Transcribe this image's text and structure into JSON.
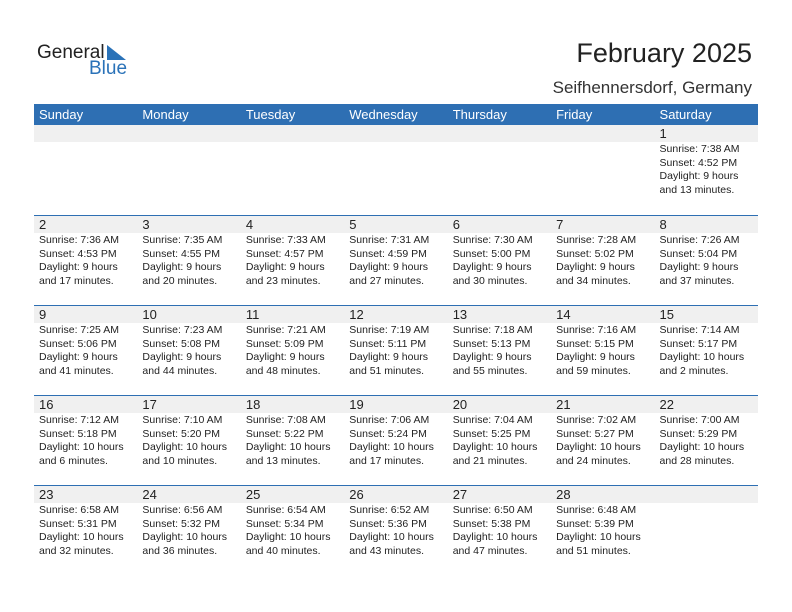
{
  "logo": {
    "text1": "General",
    "text2": "Blue"
  },
  "title": "February 2025",
  "location": "Seifhennersdorf, Germany",
  "colors": {
    "header": "#2e6fb3",
    "band": "#f0f0f0"
  },
  "weekdays": [
    "Sunday",
    "Monday",
    "Tuesday",
    "Wednesday",
    "Thursday",
    "Friday",
    "Saturday"
  ],
  "weeks": [
    {
      "days": [
        null,
        null,
        null,
        null,
        null,
        null,
        {
          "date": "1",
          "sunrise": "Sunrise: 7:38 AM",
          "sunset": "Sunset: 4:52 PM",
          "daylight1": "Daylight: 9 hours",
          "daylight2": "and 13 minutes."
        }
      ]
    },
    {
      "days": [
        {
          "date": "2",
          "sunrise": "Sunrise: 7:36 AM",
          "sunset": "Sunset: 4:53 PM",
          "daylight1": "Daylight: 9 hours",
          "daylight2": "and 17 minutes."
        },
        {
          "date": "3",
          "sunrise": "Sunrise: 7:35 AM",
          "sunset": "Sunset: 4:55 PM",
          "daylight1": "Daylight: 9 hours",
          "daylight2": "and 20 minutes."
        },
        {
          "date": "4",
          "sunrise": "Sunrise: 7:33 AM",
          "sunset": "Sunset: 4:57 PM",
          "daylight1": "Daylight: 9 hours",
          "daylight2": "and 23 minutes."
        },
        {
          "date": "5",
          "sunrise": "Sunrise: 7:31 AM",
          "sunset": "Sunset: 4:59 PM",
          "daylight1": "Daylight: 9 hours",
          "daylight2": "and 27 minutes."
        },
        {
          "date": "6",
          "sunrise": "Sunrise: 7:30 AM",
          "sunset": "Sunset: 5:00 PM",
          "daylight1": "Daylight: 9 hours",
          "daylight2": "and 30 minutes."
        },
        {
          "date": "7",
          "sunrise": "Sunrise: 7:28 AM",
          "sunset": "Sunset: 5:02 PM",
          "daylight1": "Daylight: 9 hours",
          "daylight2": "and 34 minutes."
        },
        {
          "date": "8",
          "sunrise": "Sunrise: 7:26 AM",
          "sunset": "Sunset: 5:04 PM",
          "daylight1": "Daylight: 9 hours",
          "daylight2": "and 37 minutes."
        }
      ]
    },
    {
      "days": [
        {
          "date": "9",
          "sunrise": "Sunrise: 7:25 AM",
          "sunset": "Sunset: 5:06 PM",
          "daylight1": "Daylight: 9 hours",
          "daylight2": "and 41 minutes."
        },
        {
          "date": "10",
          "sunrise": "Sunrise: 7:23 AM",
          "sunset": "Sunset: 5:08 PM",
          "daylight1": "Daylight: 9 hours",
          "daylight2": "and 44 minutes."
        },
        {
          "date": "11",
          "sunrise": "Sunrise: 7:21 AM",
          "sunset": "Sunset: 5:09 PM",
          "daylight1": "Daylight: 9 hours",
          "daylight2": "and 48 minutes."
        },
        {
          "date": "12",
          "sunrise": "Sunrise: 7:19 AM",
          "sunset": "Sunset: 5:11 PM",
          "daylight1": "Daylight: 9 hours",
          "daylight2": "and 51 minutes."
        },
        {
          "date": "13",
          "sunrise": "Sunrise: 7:18 AM",
          "sunset": "Sunset: 5:13 PM",
          "daylight1": "Daylight: 9 hours",
          "daylight2": "and 55 minutes."
        },
        {
          "date": "14",
          "sunrise": "Sunrise: 7:16 AM",
          "sunset": "Sunset: 5:15 PM",
          "daylight1": "Daylight: 9 hours",
          "daylight2": "and 59 minutes."
        },
        {
          "date": "15",
          "sunrise": "Sunrise: 7:14 AM",
          "sunset": "Sunset: 5:17 PM",
          "daylight1": "Daylight: 10 hours",
          "daylight2": "and 2 minutes."
        }
      ]
    },
    {
      "days": [
        {
          "date": "16",
          "sunrise": "Sunrise: 7:12 AM",
          "sunset": "Sunset: 5:18 PM",
          "daylight1": "Daylight: 10 hours",
          "daylight2": "and 6 minutes."
        },
        {
          "date": "17",
          "sunrise": "Sunrise: 7:10 AM",
          "sunset": "Sunset: 5:20 PM",
          "daylight1": "Daylight: 10 hours",
          "daylight2": "and 10 minutes."
        },
        {
          "date": "18",
          "sunrise": "Sunrise: 7:08 AM",
          "sunset": "Sunset: 5:22 PM",
          "daylight1": "Daylight: 10 hours",
          "daylight2": "and 13 minutes."
        },
        {
          "date": "19",
          "sunrise": "Sunrise: 7:06 AM",
          "sunset": "Sunset: 5:24 PM",
          "daylight1": "Daylight: 10 hours",
          "daylight2": "and 17 minutes."
        },
        {
          "date": "20",
          "sunrise": "Sunrise: 7:04 AM",
          "sunset": "Sunset: 5:25 PM",
          "daylight1": "Daylight: 10 hours",
          "daylight2": "and 21 minutes."
        },
        {
          "date": "21",
          "sunrise": "Sunrise: 7:02 AM",
          "sunset": "Sunset: 5:27 PM",
          "daylight1": "Daylight: 10 hours",
          "daylight2": "and 24 minutes."
        },
        {
          "date": "22",
          "sunrise": "Sunrise: 7:00 AM",
          "sunset": "Sunset: 5:29 PM",
          "daylight1": "Daylight: 10 hours",
          "daylight2": "and 28 minutes."
        }
      ]
    },
    {
      "days": [
        {
          "date": "23",
          "sunrise": "Sunrise: 6:58 AM",
          "sunset": "Sunset: 5:31 PM",
          "daylight1": "Daylight: 10 hours",
          "daylight2": "and 32 minutes."
        },
        {
          "date": "24",
          "sunrise": "Sunrise: 6:56 AM",
          "sunset": "Sunset: 5:32 PM",
          "daylight1": "Daylight: 10 hours",
          "daylight2": "and 36 minutes."
        },
        {
          "date": "25",
          "sunrise": "Sunrise: 6:54 AM",
          "sunset": "Sunset: 5:34 PM",
          "daylight1": "Daylight: 10 hours",
          "daylight2": "and 40 minutes."
        },
        {
          "date": "26",
          "sunrise": "Sunrise: 6:52 AM",
          "sunset": "Sunset: 5:36 PM",
          "daylight1": "Daylight: 10 hours",
          "daylight2": "and 43 minutes."
        },
        {
          "date": "27",
          "sunrise": "Sunrise: 6:50 AM",
          "sunset": "Sunset: 5:38 PM",
          "daylight1": "Daylight: 10 hours",
          "daylight2": "and 47 minutes."
        },
        {
          "date": "28",
          "sunrise": "Sunrise: 6:48 AM",
          "sunset": "Sunset: 5:39 PM",
          "daylight1": "Daylight: 10 hours",
          "daylight2": "and 51 minutes."
        },
        null
      ]
    }
  ]
}
